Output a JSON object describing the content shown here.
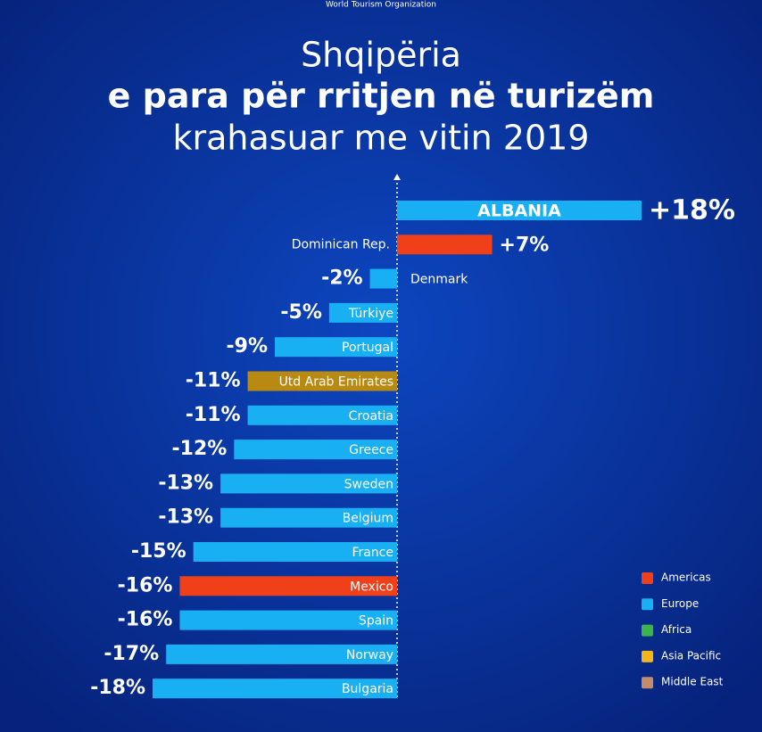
{
  "source": "World Tourism Organization",
  "chart_data": {
    "type": "hbar",
    "title": [
      "Shqipëria",
      "e para për rritjen në turizëm",
      "krahasuar me vitin 2019"
    ],
    "categories": [
      "ALBANIA",
      "Dominican Rep.",
      "Denmark",
      "Türkiye",
      "Portugal",
      "Utd Arab Emirates",
      "Croatia",
      "Greece",
      "Sweden",
      "Belgium",
      "France",
      "Mexico",
      "Spain",
      "Norway",
      "Bulgaria"
    ],
    "values": [
      18,
      7,
      -2,
      -5,
      -9,
      -11,
      -11,
      -12,
      -13,
      -13,
      -15,
      -16,
      -16,
      -17,
      -18
    ],
    "value_labels": [
      "+18%",
      "+7%",
      "-2%",
      "-5%",
      "-9%",
      "-11%",
      "-11%",
      "-12%",
      "-13%",
      "-13%",
      "-15%",
      "-16%",
      "-16%",
      "-17%",
      "-18%"
    ],
    "colors": [
      "#18b0f2",
      "#f0401a",
      "#18b0f2",
      "#18b0f2",
      "#18b0f2",
      "#b98a12",
      "#18b0f2",
      "#18b0f2",
      "#18b0f2",
      "#18b0f2",
      "#18b0f2",
      "#f0401a",
      "#18b0f2",
      "#18b0f2",
      "#18b0f2"
    ],
    "xlim": [
      -18,
      18
    ],
    "legend": [
      {
        "name": "Americas",
        "color": "#f0401a"
      },
      {
        "name": "Europe",
        "color": "#18b0f2"
      },
      {
        "name": "Africa",
        "color": "#3cb44a"
      },
      {
        "name": "Asia Pacific",
        "color": "#f2b51a"
      },
      {
        "name": "Middle East",
        "color": "#c48c6a"
      }
    ]
  }
}
